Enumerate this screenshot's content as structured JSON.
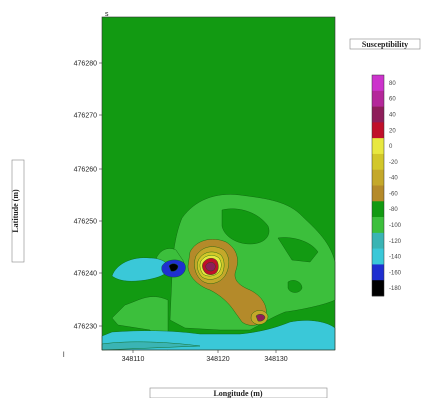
{
  "chart_data": {
    "type": "heatmap",
    "title": "",
    "corner_mark": "s",
    "stray_mark": "l",
    "xlabel": "Longitude (m)",
    "ylabel": "Latitude (m)",
    "legend_title": "Susceptibility",
    "x_ticks": [
      "348110",
      "348120",
      "348130"
    ],
    "y_ticks": [
      "476280",
      "476270",
      "476260",
      "476250",
      "476240",
      "476230"
    ],
    "colorbar": [
      {
        "label": "80",
        "color": "#cc33cc"
      },
      {
        "label": "60",
        "color": "#b4279a"
      },
      {
        "label": "40",
        "color": "#8e1e5a"
      },
      {
        "label": "20",
        "color": "#c0102a"
      },
      {
        "label": "0",
        "color": "#e8e840"
      },
      {
        "label": "-20",
        "color": "#d2c72a"
      },
      {
        "label": "-40",
        "color": "#c4a82a"
      },
      {
        "label": "-60",
        "color": "#b48a2a"
      },
      {
        "label": "-80",
        "color": "#129a12"
      },
      {
        "label": "-100",
        "color": "#3cbf3c"
      },
      {
        "label": "-120",
        "color": "#3ab4b4"
      },
      {
        "label": "-140",
        "color": "#3ac8d8"
      },
      {
        "label": "-160",
        "color": "#1f2fd0"
      },
      {
        "label": "-180",
        "color": "#000000"
      }
    ],
    "field_color": "#129a12",
    "features": [
      {
        "type": "high",
        "value": 60,
        "colorIdx": 1,
        "near": [
          348118,
          476242
        ]
      },
      {
        "type": "low",
        "value": -160,
        "colorIdx": 12,
        "near": [
          348115,
          476242
        ]
      },
      {
        "type": "plateau",
        "value": -100,
        "colorIdx": 9,
        "near": [
          348124,
          476250
        ]
      },
      {
        "type": "low",
        "value": -140,
        "colorIdx": 11,
        "near": [
          348111,
          476242
        ]
      },
      {
        "type": "low",
        "value": -140,
        "colorIdx": 11,
        "near": [
          348130,
          476230
        ]
      }
    ]
  }
}
